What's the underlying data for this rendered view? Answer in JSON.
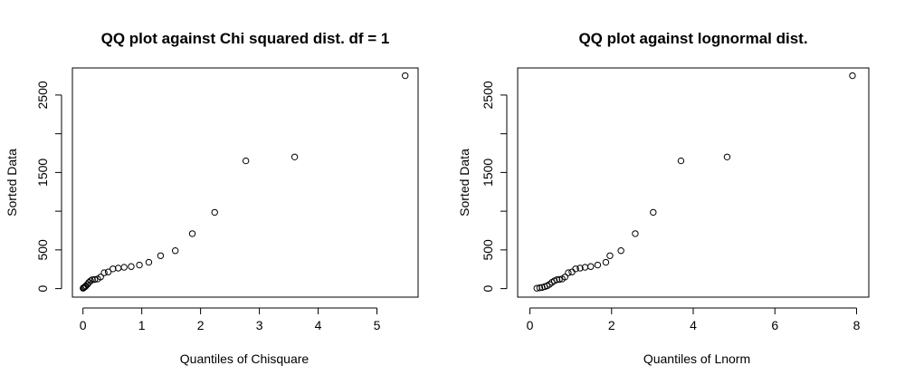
{
  "chart_data": [
    {
      "type": "scatter",
      "title": "QQ plot against Chi squared dist. df = 1",
      "xlabel": "Quantiles of Chisquare",
      "ylabel": "Sorted Data",
      "xlim": [
        -0.18,
        5.7
      ],
      "ylim": [
        -110,
        2850
      ],
      "xticks": [
        0,
        1,
        2,
        3,
        4,
        5
      ],
      "yticks": [
        0,
        500,
        1500,
        2500
      ],
      "yminor_ticks": [
        1000,
        2000
      ],
      "grid": false,
      "points": [
        {
          "x": 0.002,
          "y": 5
        },
        {
          "x": 0.01,
          "y": 10
        },
        {
          "x": 0.02,
          "y": 15
        },
        {
          "x": 0.035,
          "y": 25
        },
        {
          "x": 0.05,
          "y": 35
        },
        {
          "x": 0.075,
          "y": 55
        },
        {
          "x": 0.1,
          "y": 80
        },
        {
          "x": 0.13,
          "y": 100
        },
        {
          "x": 0.16,
          "y": 115
        },
        {
          "x": 0.2,
          "y": 118
        },
        {
          "x": 0.25,
          "y": 125
        },
        {
          "x": 0.3,
          "y": 150
        },
        {
          "x": 0.36,
          "y": 205
        },
        {
          "x": 0.43,
          "y": 215
        },
        {
          "x": 0.51,
          "y": 255
        },
        {
          "x": 0.6,
          "y": 265
        },
        {
          "x": 0.7,
          "y": 275
        },
        {
          "x": 0.82,
          "y": 285
        },
        {
          "x": 0.96,
          "y": 305
        },
        {
          "x": 1.12,
          "y": 340
        },
        {
          "x": 1.32,
          "y": 425
        },
        {
          "x": 1.57,
          "y": 490
        },
        {
          "x": 1.86,
          "y": 710
        },
        {
          "x": 2.24,
          "y": 985
        },
        {
          "x": 2.77,
          "y": 1650
        },
        {
          "x": 3.6,
          "y": 1700
        },
        {
          "x": 5.48,
          "y": 2750
        }
      ]
    },
    {
      "type": "scatter",
      "title": "QQ plot against lognormal dist.",
      "xlabel": "Quantiles of Lnorm",
      "ylabel": "Sorted Data",
      "xlim": [
        -0.3,
        8.3
      ],
      "ylim": [
        -110,
        2850
      ],
      "xticks": [
        0,
        2,
        4,
        6,
        8
      ],
      "yticks": [
        0,
        500,
        1500,
        2500
      ],
      "yminor_ticks": [
        1000,
        2000
      ],
      "grid": false,
      "points": [
        {
          "x": 0.17,
          "y": 5
        },
        {
          "x": 0.24,
          "y": 10
        },
        {
          "x": 0.3,
          "y": 15
        },
        {
          "x": 0.36,
          "y": 25
        },
        {
          "x": 0.42,
          "y": 35
        },
        {
          "x": 0.48,
          "y": 55
        },
        {
          "x": 0.54,
          "y": 80
        },
        {
          "x": 0.6,
          "y": 100
        },
        {
          "x": 0.66,
          "y": 115
        },
        {
          "x": 0.72,
          "y": 118
        },
        {
          "x": 0.79,
          "y": 125
        },
        {
          "x": 0.86,
          "y": 150
        },
        {
          "x": 0.94,
          "y": 205
        },
        {
          "x": 1.03,
          "y": 215
        },
        {
          "x": 1.12,
          "y": 255
        },
        {
          "x": 1.23,
          "y": 265
        },
        {
          "x": 1.35,
          "y": 275
        },
        {
          "x": 1.49,
          "y": 285
        },
        {
          "x": 1.66,
          "y": 305
        },
        {
          "x": 1.86,
          "y": 340
        },
        {
          "x": 1.96,
          "y": 425
        },
        {
          "x": 2.23,
          "y": 490
        },
        {
          "x": 2.58,
          "y": 710
        },
        {
          "x": 3.02,
          "y": 985
        },
        {
          "x": 3.7,
          "y": 1650
        },
        {
          "x": 4.83,
          "y": 1700
        },
        {
          "x": 7.9,
          "y": 2750
        }
      ]
    }
  ]
}
